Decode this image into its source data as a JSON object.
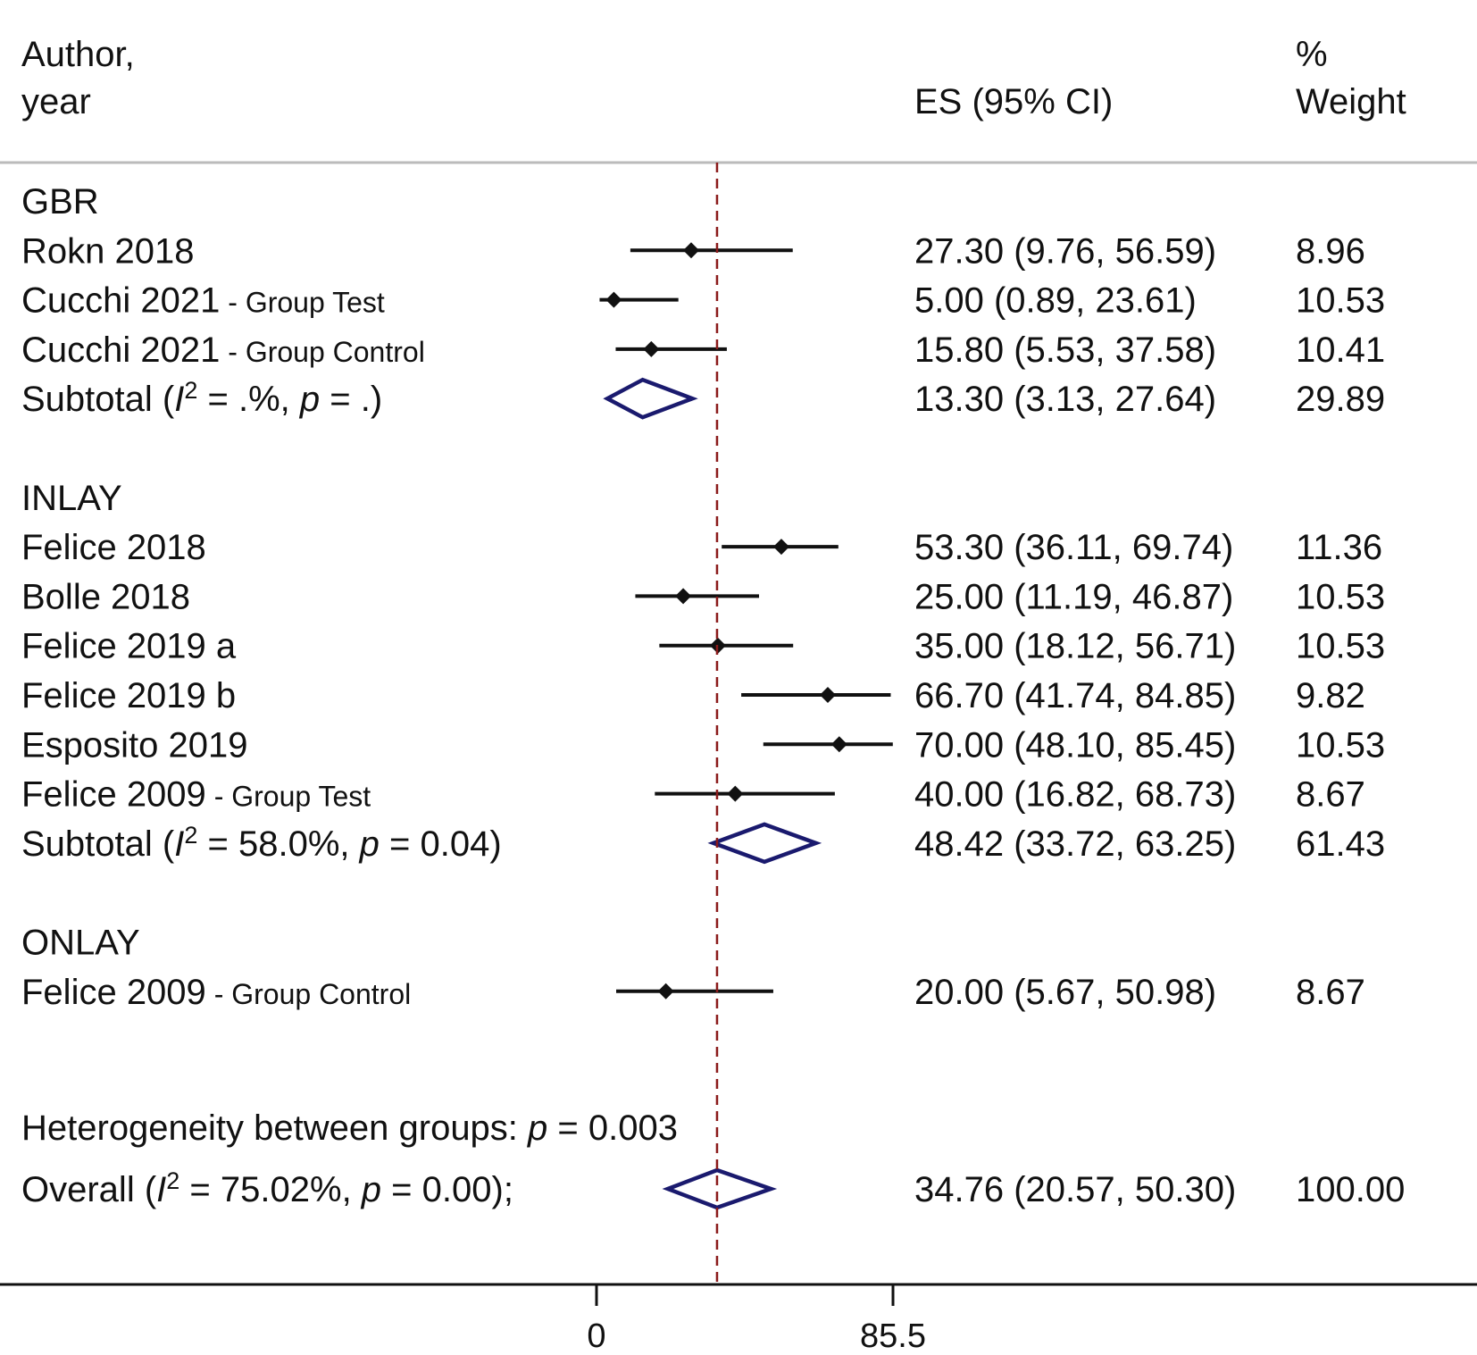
{
  "header": {
    "author_line1": "Author,",
    "author_line2": "year",
    "es_label": "ES (95% CI)",
    "weight_line1": "%",
    "weight_line2": "Weight"
  },
  "chart_data": {
    "type": "forest",
    "xticks": [
      0,
      85.5
    ],
    "xlim": [
      0,
      85.5
    ],
    "reference_line": 34.76,
    "colors": {
      "study_marker": "#111111",
      "diamond": "#1a1a6e",
      "reference_line": "#8b1a1a",
      "separator": "#bbbbbb"
    },
    "groups": [
      {
        "name": "GBR",
        "studies": [
          {
            "author": "Rokn 2018",
            "note": "",
            "es": 27.3,
            "lo": 9.76,
            "hi": 56.59,
            "es_text": "27.30 (9.76, 56.59)",
            "weight": "8.96"
          },
          {
            "author": "Cucchi 2021",
            "note": "- Group Test",
            "es": 5.0,
            "lo": 0.89,
            "hi": 23.61,
            "es_text": "5.00 (0.89, 23.61)",
            "weight": "10.53"
          },
          {
            "author": "Cucchi 2021",
            "note": "- Group Control",
            "es": 15.8,
            "lo": 5.53,
            "hi": 37.58,
            "es_text": "15.80 (5.53, 37.58)",
            "weight": "10.41"
          }
        ],
        "subtotal": {
          "label": "Subtotal",
          "i2": ".%",
          "p": ".",
          "es": 13.3,
          "lo": 3.13,
          "hi": 27.64,
          "es_text": "13.30 (3.13, 27.64)",
          "weight": "29.89"
        }
      },
      {
        "name": "INLAY",
        "studies": [
          {
            "author": "Felice 2018",
            "note": "",
            "es": 53.3,
            "lo": 36.11,
            "hi": 69.74,
            "es_text": "53.30 (36.11, 69.74)",
            "weight": "11.36"
          },
          {
            "author": "Bolle 2018",
            "note": "",
            "es": 25.0,
            "lo": 11.19,
            "hi": 46.87,
            "es_text": "25.00 (11.19, 46.87)",
            "weight": "10.53"
          },
          {
            "author": "Felice 2019 a",
            "note": "",
            "es": 35.0,
            "lo": 18.12,
            "hi": 56.71,
            "es_text": "35.00 (18.12, 56.71)",
            "weight": "10.53"
          },
          {
            "author": "Felice 2019 b",
            "note": "",
            "es": 66.7,
            "lo": 41.74,
            "hi": 84.85,
            "es_text": "66.70 (41.74, 84.85)",
            "weight": "9.82"
          },
          {
            "author": "Esposito 2019",
            "note": "",
            "es": 70.0,
            "lo": 48.1,
            "hi": 85.45,
            "es_text": "70.00 (48.10, 85.45)",
            "weight": "10.53"
          },
          {
            "author": "Felice 2009",
            "note": "- Group Test",
            "es": 40.0,
            "lo": 16.82,
            "hi": 68.73,
            "es_text": "40.00 (16.82, 68.73)",
            "weight": "8.67"
          }
        ],
        "subtotal": {
          "label": "Subtotal",
          "i2": "58.0%",
          "p": "0.04",
          "es": 48.42,
          "lo": 33.72,
          "hi": 63.25,
          "es_text": "48.42 (33.72, 63.25)",
          "weight": "61.43"
        }
      },
      {
        "name": "ONLAY",
        "studies": [
          {
            "author": "Felice 2009",
            "note": "- Group Control",
            "es": 20.0,
            "lo": 5.67,
            "hi": 50.98,
            "es_text": "20.00 (5.67, 50.98)",
            "weight": "8.67"
          }
        ],
        "subtotal": null
      }
    ],
    "heterogeneity": {
      "label": "Heterogeneity between groups:",
      "p": "0.003"
    },
    "overall": {
      "label": "Overall",
      "i2": "75.02%",
      "p": "0.00",
      "es": 34.76,
      "lo": 20.57,
      "hi": 50.3,
      "es_text": "34.76 (20.57, 50.30)",
      "weight": "100.00"
    }
  }
}
